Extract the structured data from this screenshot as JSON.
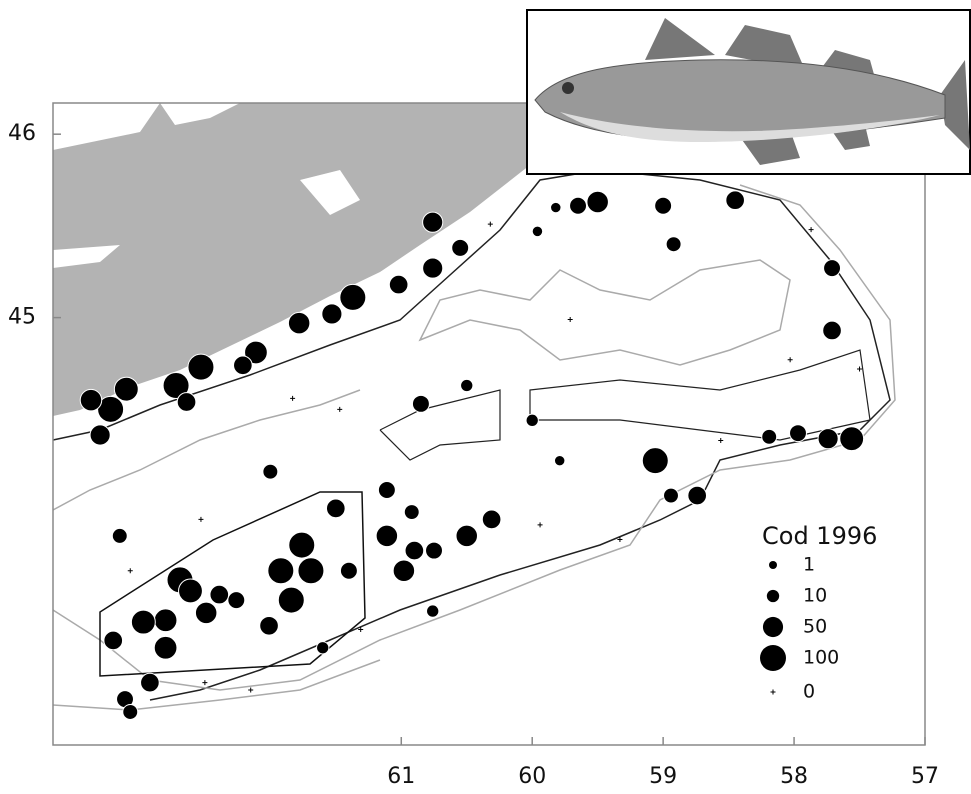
{
  "chart_data": {
    "type": "bubble",
    "xlim": [
      63.66,
      57
    ],
    "ylim": [
      42.67,
      46.17
    ],
    "xticks": [
      61,
      60,
      59,
      58,
      57
    ],
    "yticks": [
      46,
      45
    ],
    "color": "#000000",
    "x": [
      60.76,
      60.76,
      60.55,
      61.02,
      61.37,
      61.53,
      61.78,
      62.11,
      62.21,
      62.53,
      62.72,
      62.64,
      63.1,
      63.22,
      63.3,
      63.37,
      59.5,
      59.65,
      59.0,
      58.45,
      57.71,
      57.71,
      60.85,
      60.5,
      60.0,
      61.11,
      60.92,
      62.0,
      61.11,
      60.98,
      60.9,
      60.75,
      60.5,
      60.31,
      61.5,
      61.4,
      61.76,
      61.92,
      61.84,
      61.69,
      62.01,
      62.26,
      62.49,
      62.39,
      62.69,
      62.61,
      62.8,
      62.97,
      62.8,
      63.2,
      62.92,
      63.11,
      63.07,
      63.15,
      59.06,
      58.74,
      58.94,
      57.56,
      57.74,
      57.97,
      60.76,
      61.6,
      59.96,
      59.82,
      58.92,
      58.19,
      59.79,
      61.83,
      61.47,
      59.94,
      58.03,
      57.5,
      59.71,
      58.56,
      62.5,
      62.15,
      59.33,
      60.32,
      57.87,
      62.53,
      63.07,
      61.31
    ],
    "y": [
      45.52,
      45.27,
      45.38,
      45.18,
      45.11,
      45.02,
      44.97,
      44.81,
      44.74,
      44.73,
      44.63,
      44.54,
      44.61,
      44.5,
      44.36,
      44.55,
      45.63,
      45.61,
      45.61,
      45.64,
      45.27,
      44.93,
      44.53,
      44.63,
      44.44,
      44.06,
      43.94,
      44.16,
      43.81,
      43.62,
      43.73,
      43.73,
      43.81,
      43.9,
      43.96,
      43.62,
      43.76,
      43.62,
      43.46,
      43.62,
      43.32,
      43.46,
      43.39,
      43.49,
      43.57,
      43.51,
      43.35,
      43.34,
      43.2,
      43.24,
      43.01,
      42.92,
      42.85,
      43.81,
      44.22,
      44.03,
      44.03,
      44.34,
      44.34,
      44.37,
      43.4,
      43.2,
      45.47,
      45.6,
      45.4,
      44.35,
      44.22,
      44.56,
      44.5,
      43.87,
      44.77,
      44.72,
      44.99,
      44.33,
      43.01,
      42.97,
      43.79,
      45.51,
      45.48,
      43.9,
      43.62,
      43.3
    ],
    "sizes": [
      50,
      50,
      30,
      40,
      100,
      50,
      60,
      70,
      40,
      100,
      100,
      40,
      80,
      100,
      50,
      60,
      60,
      30,
      30,
      40,
      30,
      40,
      30,
      10,
      10,
      30,
      20,
      20,
      60,
      60,
      40,
      30,
      60,
      40,
      40,
      30,
      100,
      100,
      100,
      100,
      40,
      30,
      60,
      40,
      100,
      80,
      70,
      80,
      70,
      40,
      40,
      30,
      20,
      20,
      100,
      40,
      20,
      80,
      50,
      30,
      10,
      10,
      5,
      5,
      20,
      20,
      5,
      0,
      0,
      0,
      0,
      0,
      0,
      0,
      0,
      0,
      0,
      0,
      0,
      0,
      0,
      0
    ],
    "legend": {
      "title": "Cod 1996",
      "sizes": [
        1,
        10,
        50,
        100,
        0
      ]
    }
  }
}
